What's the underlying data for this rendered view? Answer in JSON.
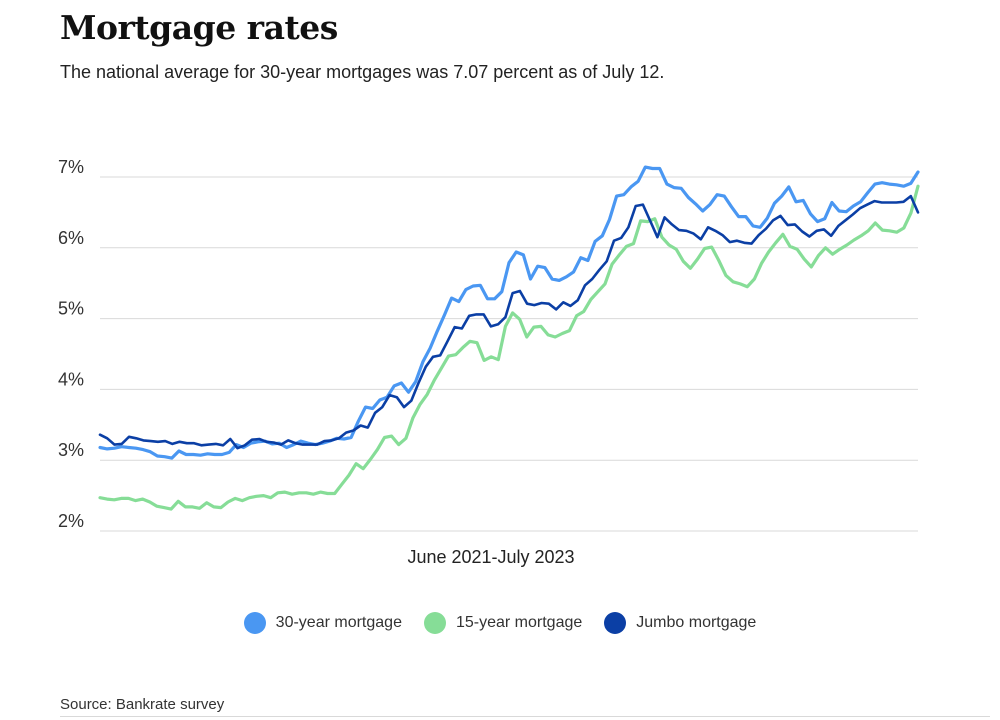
{
  "header": {
    "title": "Mortgage rates",
    "subtitle": "The national average for 30-year mortgages was 7.07 percent as of July 12."
  },
  "source": "Source: Bankrate survey",
  "chart_data": {
    "type": "line",
    "xlabel": "June 2021-July 2023",
    "ylabel": "",
    "ylim": [
      2,
      7
    ],
    "yticks": [
      "2%",
      "3%",
      "4%",
      "5%",
      "6%",
      "7%"
    ],
    "grid": "horizontal",
    "legend_position": "bottom",
    "series": [
      {
        "name": "30-year mortgage",
        "color": "#4a97f2",
        "values": [
          3.18,
          3.16,
          3.17,
          3.19,
          3.18,
          3.17,
          3.15,
          3.12,
          3.06,
          3.05,
          3.03,
          3.13,
          3.08,
          3.08,
          3.07,
          3.09,
          3.08,
          3.08,
          3.11,
          3.22,
          3.18,
          3.24,
          3.26,
          3.27,
          3.23,
          3.24,
          3.18,
          3.22,
          3.27,
          3.24,
          3.22,
          3.24,
          3.27,
          3.31,
          3.3,
          3.32,
          3.55,
          3.75,
          3.73,
          3.85,
          3.89,
          4.05,
          4.09,
          3.96,
          4.11,
          4.39,
          4.58,
          4.82,
          5.05,
          5.29,
          5.24,
          5.41,
          5.46,
          5.47,
          5.28,
          5.28,
          5.38,
          5.79,
          5.94,
          5.9,
          5.56,
          5.74,
          5.72,
          5.56,
          5.54,
          5.59,
          5.66,
          5.86,
          5.82,
          6.09,
          6.17,
          6.4,
          6.73,
          6.75,
          6.86,
          6.94,
          7.14,
          7.12,
          7.12,
          6.9,
          6.85,
          6.84,
          6.71,
          6.62,
          6.52,
          6.61,
          6.75,
          6.73,
          6.58,
          6.44,
          6.44,
          6.31,
          6.29,
          6.42,
          6.63,
          6.73,
          6.86,
          6.65,
          6.67,
          6.48,
          6.37,
          6.41,
          6.64,
          6.52,
          6.51,
          6.59,
          6.65,
          6.78,
          6.9,
          6.92,
          6.9,
          6.89,
          6.87,
          6.91,
          7.07
        ]
      },
      {
        "name": "15-year mortgage",
        "color": "#86dd97",
        "values": [
          2.47,
          2.45,
          2.44,
          2.46,
          2.46,
          2.43,
          2.45,
          2.41,
          2.35,
          2.33,
          2.31,
          2.42,
          2.34,
          2.34,
          2.32,
          2.4,
          2.34,
          2.33,
          2.41,
          2.46,
          2.43,
          2.47,
          2.49,
          2.5,
          2.47,
          2.54,
          2.55,
          2.52,
          2.54,
          2.54,
          2.52,
          2.55,
          2.53,
          2.53,
          2.66,
          2.79,
          2.95,
          2.88,
          3.01,
          3.15,
          3.32,
          3.34,
          3.22,
          3.31,
          3.6,
          3.79,
          3.93,
          4.13,
          4.3,
          4.47,
          4.49,
          4.59,
          4.68,
          4.66,
          4.41,
          4.46,
          4.42,
          4.89,
          5.08,
          4.99,
          4.74,
          4.88,
          4.89,
          4.77,
          4.74,
          4.79,
          4.83,
          5.04,
          5.1,
          5.27,
          5.38,
          5.49,
          5.77,
          5.9,
          6.02,
          6.06,
          6.38,
          6.37,
          6.41,
          6.15,
          6.04,
          5.98,
          5.81,
          5.71,
          5.84,
          5.99,
          6.01,
          5.82,
          5.61,
          5.52,
          5.49,
          5.45,
          5.56,
          5.78,
          5.94,
          6.07,
          6.19,
          6.02,
          5.98,
          5.84,
          5.73,
          5.89,
          6.0,
          5.91,
          5.98,
          6.04,
          6.11,
          6.17,
          6.24,
          6.35,
          6.25,
          6.24,
          6.22,
          6.28,
          6.49,
          6.87
        ]
      },
      {
        "name": "Jumbo mortgage",
        "color": "#0b3fa5",
        "values": [
          3.36,
          3.31,
          3.22,
          3.23,
          3.33,
          3.31,
          3.28,
          3.27,
          3.26,
          3.27,
          3.23,
          3.26,
          3.24,
          3.24,
          3.21,
          3.22,
          3.23,
          3.21,
          3.3,
          3.17,
          3.21,
          3.29,
          3.3,
          3.26,
          3.25,
          3.22,
          3.28,
          3.24,
          3.22,
          3.22,
          3.22,
          3.27,
          3.28,
          3.31,
          3.39,
          3.42,
          3.49,
          3.46,
          3.67,
          3.75,
          3.92,
          3.89,
          3.75,
          3.84,
          4.09,
          4.32,
          4.46,
          4.48,
          4.68,
          4.88,
          4.86,
          5.04,
          5.06,
          5.06,
          4.89,
          4.92,
          5.02,
          5.36,
          5.39,
          5.21,
          5.19,
          5.22,
          5.21,
          5.13,
          5.23,
          5.18,
          5.26,
          5.47,
          5.56,
          5.69,
          5.81,
          6.1,
          6.14,
          6.29,
          6.59,
          6.61,
          6.38,
          6.15,
          6.43,
          6.33,
          6.25,
          6.24,
          6.2,
          6.12,
          6.29,
          6.24,
          6.18,
          6.08,
          6.1,
          6.07,
          6.06,
          6.18,
          6.27,
          6.39,
          6.45,
          6.32,
          6.33,
          6.23,
          6.16,
          6.24,
          6.26,
          6.17,
          6.31,
          6.39,
          6.47,
          6.56,
          6.61,
          6.66,
          6.64,
          6.64,
          6.64,
          6.65,
          6.73,
          6.5
        ]
      }
    ]
  }
}
